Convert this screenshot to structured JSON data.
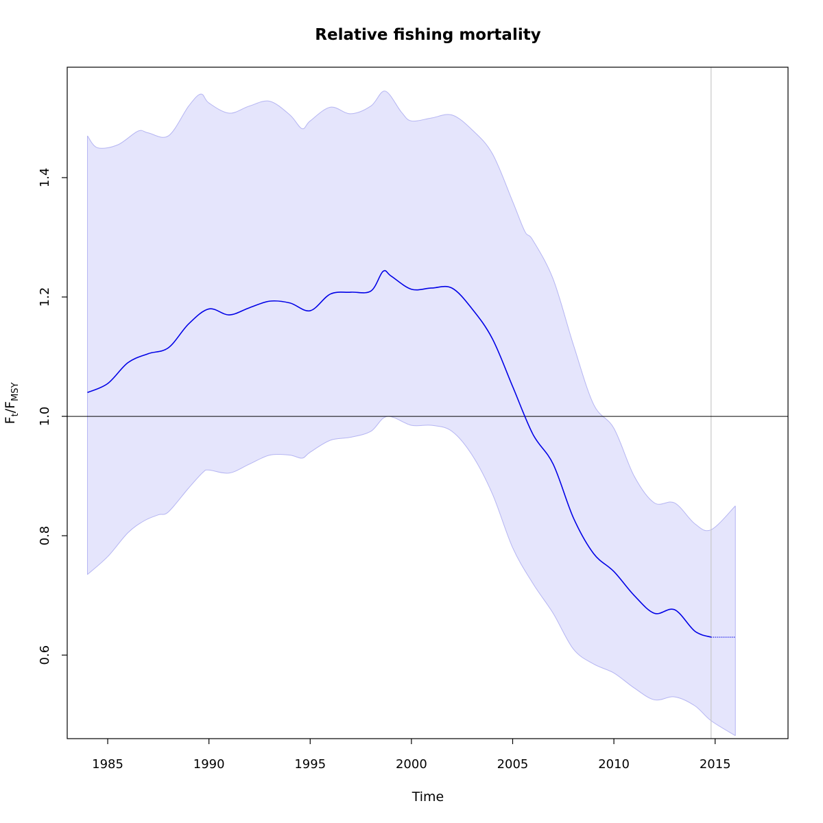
{
  "chart_data": {
    "type": "line",
    "title": "Relative fishing mortality",
    "xlabel": "Time",
    "ylabel": {
      "main": "F",
      "sub1": "t",
      "sep": "/F",
      "sub2": "MSY"
    },
    "xlim": [
      1983.0,
      2018.6
    ],
    "ylim": [
      0.46,
      1.585
    ],
    "x_ticks": [
      1985,
      1990,
      1995,
      2000,
      2005,
      2010,
      2015
    ],
    "y_ticks": [
      0.6,
      0.8,
      1.0,
      1.2,
      1.4
    ],
    "reference_line_y": 1.0,
    "vertical_line_x": 2014.8,
    "colors": {
      "median": "#0000e6",
      "band_fill": "#e5e5fc",
      "band_edge": "#b4b4f2",
      "ref_line": "#000000",
      "vline": "#c8c8c8"
    },
    "series": [
      {
        "role": "median",
        "x": [
          1984.0,
          1985.0,
          1986.0,
          1987.0,
          1988.0,
          1989.0,
          1990.0,
          1991.0,
          1992.0,
          1993.0,
          1994.0,
          1995.0,
          1996.0,
          1997.0,
          1998.0,
          1998.6,
          1999.0,
          2000.0,
          2001.0,
          2002.0,
          2003.0,
          2004.0,
          2005.0,
          2006.0,
          2007.0,
          2008.0,
          2009.0,
          2010.0,
          2011.0,
          2012.0,
          2013.0,
          2014.0,
          2014.8
        ],
        "y": [
          1.04,
          1.055,
          1.09,
          1.105,
          1.115,
          1.155,
          1.18,
          1.17,
          1.182,
          1.193,
          1.19,
          1.177,
          1.205,
          1.208,
          1.21,
          1.243,
          1.235,
          1.213,
          1.215,
          1.215,
          1.18,
          1.13,
          1.05,
          0.97,
          0.92,
          0.83,
          0.77,
          0.74,
          0.7,
          0.67,
          0.676,
          0.64,
          0.63
        ]
      },
      {
        "role": "projection",
        "x": [
          2014.8,
          2016.0
        ],
        "y": [
          0.63,
          0.63
        ]
      },
      {
        "role": "upper",
        "x": [
          1984.0,
          1984.5,
          1985.5,
          1986.5,
          1987.0,
          1988.0,
          1989.0,
          1989.6,
          1990.0,
          1991.0,
          1992.0,
          1993.0,
          1994.0,
          1994.6,
          1995.0,
          1996.0,
          1997.0,
          1998.0,
          1998.7,
          1999.5,
          2000.0,
          2001.0,
          2002.0,
          2003.0,
          2004.0,
          2005.0,
          2005.6,
          2006.0,
          2007.0,
          2008.0,
          2009.0,
          2010.0,
          2011.0,
          2012.0,
          2013.0,
          2014.0,
          2014.8,
          2016.0
        ],
        "y": [
          1.47,
          1.45,
          1.455,
          1.478,
          1.475,
          1.47,
          1.52,
          1.54,
          1.525,
          1.508,
          1.52,
          1.528,
          1.505,
          1.482,
          1.495,
          1.518,
          1.507,
          1.52,
          1.545,
          1.51,
          1.495,
          1.5,
          1.505,
          1.48,
          1.44,
          1.36,
          1.31,
          1.295,
          1.23,
          1.12,
          1.02,
          0.98,
          0.9,
          0.855,
          0.855,
          0.82,
          0.81,
          0.85
        ]
      },
      {
        "role": "lower",
        "x": [
          1984.0,
          1985.0,
          1986.0,
          1986.8,
          1987.5,
          1988.0,
          1989.0,
          1989.7,
          1990.0,
          1991.0,
          1992.0,
          1993.0,
          1994.0,
          1994.6,
          1995.0,
          1996.0,
          1997.0,
          1998.0,
          1998.8,
          2000.0,
          2001.0,
          2002.0,
          2003.0,
          2004.0,
          2005.0,
          2006.0,
          2007.0,
          2008.0,
          2009.0,
          2010.0,
          2011.0,
          2012.0,
          2013.0,
          2014.0,
          2014.8,
          2016.0
        ],
        "y": [
          0.735,
          0.765,
          0.805,
          0.825,
          0.835,
          0.84,
          0.88,
          0.906,
          0.91,
          0.905,
          0.92,
          0.935,
          0.935,
          0.93,
          0.94,
          0.96,
          0.965,
          0.975,
          1.0,
          0.985,
          0.985,
          0.975,
          0.935,
          0.87,
          0.78,
          0.72,
          0.67,
          0.61,
          0.585,
          0.57,
          0.545,
          0.525,
          0.53,
          0.515,
          0.49,
          0.465
        ]
      }
    ]
  }
}
